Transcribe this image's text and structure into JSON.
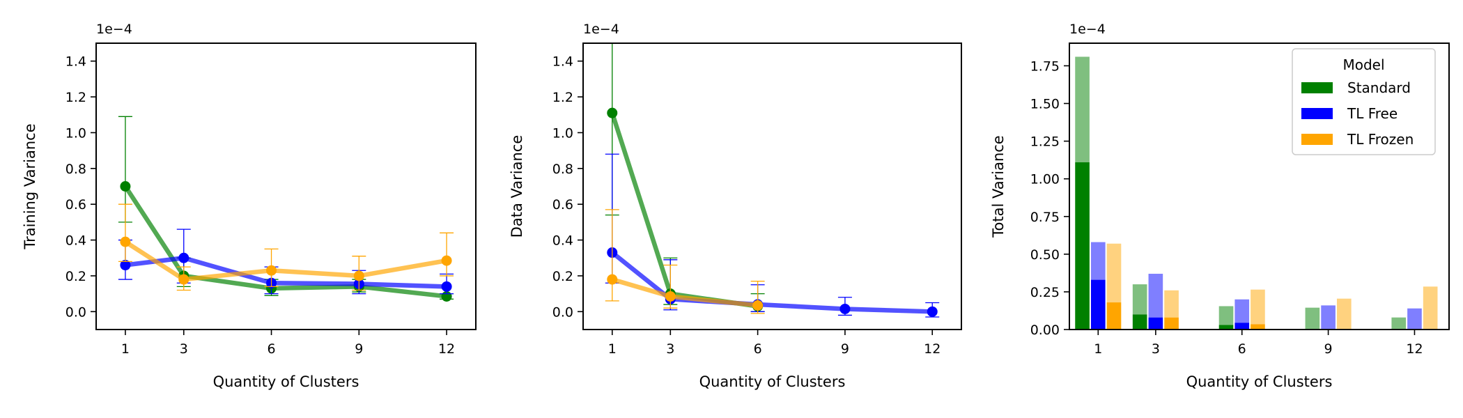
{
  "colors": {
    "standard": "#008000",
    "tl_free": "#0000ff",
    "tl_frozen": "#ffa500"
  },
  "chart_data": [
    {
      "type": "line",
      "panel": "training",
      "xlabel": "Quantity of Clusters",
      "ylabel": "Training Variance",
      "exponent_label": "1e−4",
      "xticks": [
        1,
        3,
        6,
        9,
        12
      ],
      "yticks": [
        "0.0",
        "0.2",
        "0.4",
        "0.6",
        "0.8",
        "1.0",
        "1.2",
        "1.4"
      ],
      "ylim": [
        -0.1,
        1.5
      ],
      "series": [
        {
          "name": "Standard",
          "color_key": "standard",
          "x": [
            1,
            3,
            6,
            9,
            12
          ],
          "y": [
            0.7,
            0.2,
            0.13,
            0.14,
            0.085
          ],
          "err_low": [
            0.5,
            0.14,
            0.09,
            0.11,
            0.07
          ],
          "err_high": [
            1.09,
            0.3,
            0.18,
            0.18,
            0.1
          ]
        },
        {
          "name": "TL Free",
          "color_key": "tl_free",
          "x": [
            1,
            3,
            6,
            9,
            12
          ],
          "y": [
            0.26,
            0.3,
            0.16,
            0.155,
            0.14
          ],
          "err_low": [
            0.18,
            0.16,
            0.1,
            0.1,
            0.1
          ],
          "err_high": [
            0.4,
            0.46,
            0.25,
            0.23,
            0.21
          ]
        },
        {
          "name": "TL Frozen",
          "color_key": "tl_frozen",
          "x": [
            1,
            3,
            6,
            9,
            12
          ],
          "y": [
            0.39,
            0.18,
            0.23,
            0.2,
            0.285
          ],
          "err_low": [
            0.28,
            0.12,
            0.14,
            0.12,
            0.2
          ],
          "err_high": [
            0.6,
            0.25,
            0.35,
            0.31,
            0.44
          ]
        }
      ]
    },
    {
      "type": "line",
      "panel": "data",
      "xlabel": "Quantity of Clusters",
      "ylabel": "Data Variance",
      "exponent_label": "1e−4",
      "xticks": [
        1,
        3,
        6,
        9,
        12
      ],
      "yticks": [
        "0.0",
        "0.2",
        "0.4",
        "0.6",
        "0.8",
        "1.0",
        "1.2",
        "1.4"
      ],
      "ylim": [
        -0.1,
        1.5
      ],
      "series": [
        {
          "name": "Standard",
          "color_key": "standard",
          "x": [
            1,
            3,
            6
          ],
          "y": [
            1.11,
            0.1,
            0.03
          ],
          "err_low": [
            0.54,
            0.04,
            0.0
          ],
          "err_high": [
            1.5,
            0.3,
            0.1
          ]
        },
        {
          "name": "TL Free",
          "color_key": "tl_free",
          "x": [
            1,
            3,
            6,
            9,
            12
          ],
          "y": [
            0.33,
            0.07,
            0.04,
            0.015,
            0.0
          ],
          "err_low": [
            0.16,
            0.01,
            0.0,
            -0.02,
            -0.03
          ],
          "err_high": [
            0.88,
            0.29,
            0.15,
            0.08,
            0.05
          ]
        },
        {
          "name": "TL Frozen",
          "color_key": "tl_frozen",
          "x": [
            1,
            3,
            6
          ],
          "y": [
            0.18,
            0.085,
            0.035
          ],
          "err_low": [
            0.06,
            0.02,
            -0.01
          ],
          "err_high": [
            0.57,
            0.26,
            0.17
          ]
        }
      ]
    },
    {
      "type": "bar",
      "panel": "total",
      "xlabel": "Quantity of Clusters",
      "ylabel": "Total Variance",
      "exponent_label": "1e−4",
      "xticks": [
        1,
        3,
        6,
        9,
        12
      ],
      "yticks": [
        "0.00",
        "0.25",
        "0.50",
        "0.75",
        "1.00",
        "1.25",
        "1.50",
        "1.75"
      ],
      "ylim": [
        0,
        1.9
      ],
      "bar_width": 0.5,
      "legend": {
        "title": "Model",
        "position": "top-right",
        "entries": [
          "Standard",
          "TL Free",
          "TL Frozen"
        ]
      },
      "series": [
        {
          "name": "Standard",
          "color_key": "standard",
          "offset": -0.55,
          "total": [
            1.81,
            0.3,
            0.155,
            0.145,
            0.08
          ],
          "data_part": [
            1.11,
            0.1,
            0.03,
            0.0,
            0.0
          ]
        },
        {
          "name": "TL Free",
          "color_key": "tl_free",
          "offset": 0.0,
          "total": [
            0.58,
            0.37,
            0.2,
            0.16,
            0.14
          ],
          "data_part": [
            0.33,
            0.08,
            0.045,
            0.0,
            0.0
          ]
        },
        {
          "name": "TL Frozen",
          "color_key": "tl_frozen",
          "offset": 0.55,
          "total": [
            0.57,
            0.26,
            0.265,
            0.205,
            0.285
          ],
          "data_part": [
            0.18,
            0.08,
            0.035,
            0.0,
            0.0
          ]
        }
      ]
    }
  ]
}
